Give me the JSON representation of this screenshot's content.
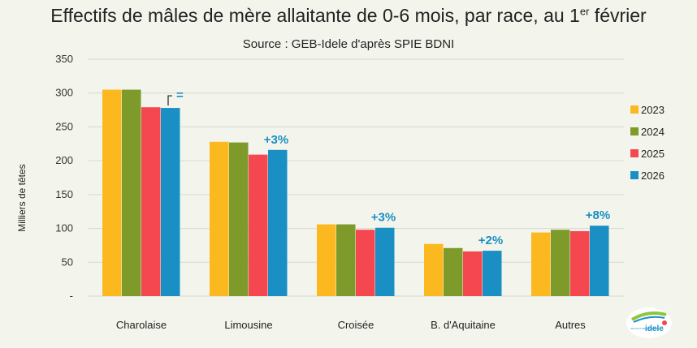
{
  "chart_data": {
    "type": "bar",
    "title_main": "Effectifs de mâles de mère allaitante de 0-6 mois, par race, au 1",
    "title_sup": "er",
    "title_end": " février",
    "subtitle": "Source : GEB-Idele d'après SPIE BDNI",
    "ylabel": "Milliers de têtes",
    "ylim": [
      0,
      350
    ],
    "yticks": [
      "-",
      "50",
      "100",
      "150",
      "200",
      "250",
      "300",
      "350"
    ],
    "categories": [
      "Charolaise",
      "Limousine",
      "Croisée",
      "B. d'Aquitaine",
      "Autres"
    ],
    "series": [
      {
        "name": "2023",
        "color": "#fbb91f",
        "values": [
          305,
          228,
          106,
          77,
          94
        ]
      },
      {
        "name": "2024",
        "color": "#7e9a2b",
        "values": [
          305,
          227,
          106,
          71,
          98
        ]
      },
      {
        "name": "2025",
        "color": "#f4474f",
        "values": [
          279,
          209,
          98,
          66,
          96
        ]
      },
      {
        "name": "2026",
        "color": "#1a8fc4",
        "values": [
          278,
          216,
          101,
          67,
          104
        ]
      }
    ],
    "annotations": [
      "=",
      "+3%",
      "+3%",
      "+2%",
      "+8%"
    ],
    "legend_position": "right"
  },
  "logo": {
    "text": "idele",
    "small_text": "INSTITUT DE L'ÉLEVAGE",
    "color": "#1a8fc4",
    "accent": "#8dc63f"
  }
}
